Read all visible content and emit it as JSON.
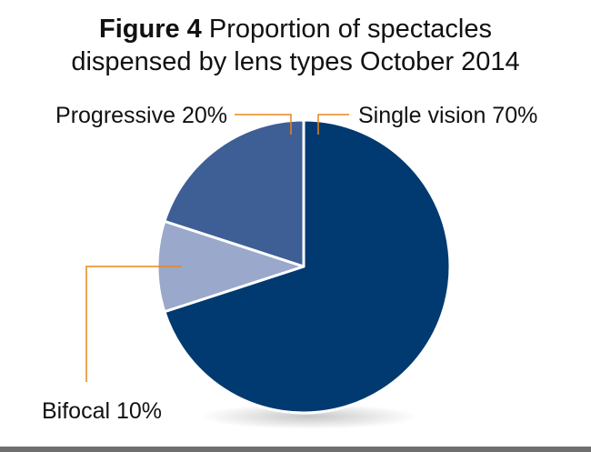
{
  "title": {
    "figure_label": "Figure 4",
    "line1_rest": "Proportion of spectacles",
    "line2": "dispensed by lens types October 2014"
  },
  "colors": {
    "single_vision": "#003a70",
    "progressive": "#3e5e96",
    "bifocal": "#9aa8cb",
    "leader": "#e8861a"
  },
  "chart_data": {
    "type": "pie",
    "title": "Figure 4 Proportion of spectacles dispensed by lens types October 2014",
    "slices": [
      {
        "label": "Single vision",
        "value": 70,
        "display": "Single vision 70%"
      },
      {
        "label": "Bifocal",
        "value": 10,
        "display": "Bifocal 10%"
      },
      {
        "label": "Progressive",
        "value": 20,
        "display": "Progressive 20%"
      }
    ],
    "unit": "%",
    "start": "12 o'clock",
    "direction": "clockwise"
  }
}
